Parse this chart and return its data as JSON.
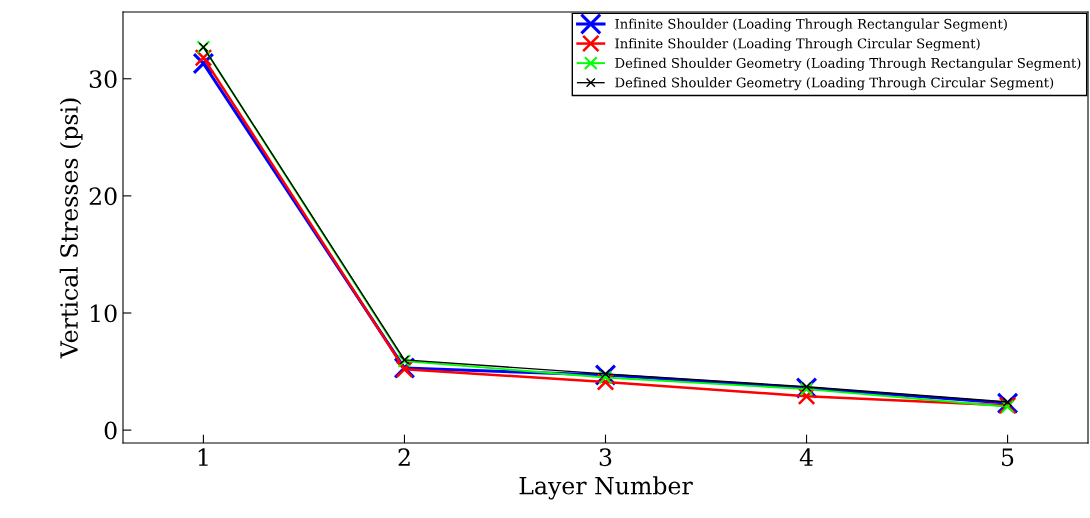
{
  "chart_data": {
    "type": "line",
    "xlabel": "Layer Number",
    "ylabel": "Vertical Stresses (psi)",
    "x": [
      1,
      2,
      3,
      4,
      5
    ],
    "xlim": [
      0.6,
      5.4
    ],
    "xticks": [
      1,
      2,
      3,
      4,
      5
    ],
    "ylim": [
      -1.1,
      35.7
    ],
    "yticks": [
      0,
      10,
      20,
      30
    ],
    "marker": "cross",
    "line_style": "solid",
    "legend": "top right",
    "grid": false,
    "series": [
      {
        "name": "Infinite Shoulder (Loading Through Rectangular Segment)",
        "color": "#0000ff",
        "values": [
          31.3,
          5.3,
          4.7,
          3.6,
          2.3
        ]
      },
      {
        "name": "Infinite Shoulder (Loading Through Circular Segment)",
        "color": "#ff0000",
        "values": [
          31.8,
          5.2,
          4.1,
          2.9,
          2.1
        ]
      },
      {
        "name": "Defined Shoulder Geometry (Loading Through Rectangular Segment)",
        "color": "#00ff00",
        "values": [
          32.7,
          5.9,
          4.5,
          3.5,
          2.0
        ]
      },
      {
        "name": "Defined Shoulder Geometry (Loading Through Circular Segment)",
        "color": "#000000",
        "values": [
          32.7,
          6.0,
          4.8,
          3.7,
          2.4
        ]
      }
    ]
  }
}
